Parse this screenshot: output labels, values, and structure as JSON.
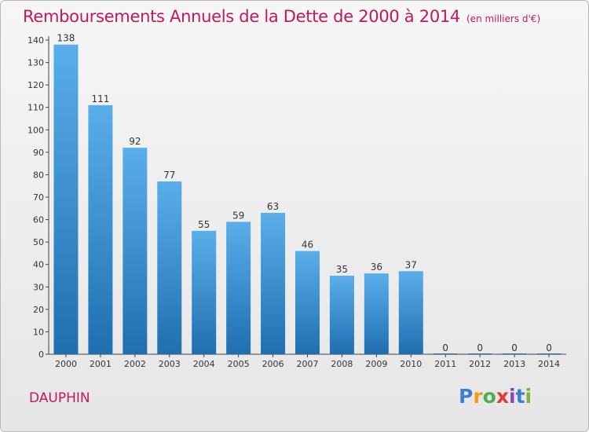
{
  "header": {
    "title": "Remboursements Annuels de la Dette de 2000 à 2014",
    "unit": "(en milliers d'€)"
  },
  "commune": "DAUPHIN",
  "logo": {
    "text": "Proxiti",
    "letter_colors": [
      "#3d7fc9",
      "#f39c12",
      "#4caf50",
      "#e53935",
      "#8e44ad",
      "#3d7fc9",
      "#7cb342"
    ]
  },
  "chart_data": {
    "type": "bar",
    "title": "Remboursements Annuels de la Dette de 2000 à 2014",
    "categories": [
      "2000",
      "2001",
      "2002",
      "2003",
      "2004",
      "2005",
      "2006",
      "2007",
      "2008",
      "2009",
      "2010",
      "2011",
      "2012",
      "2013",
      "2014"
    ],
    "values": [
      138,
      111,
      92,
      77,
      55,
      59,
      63,
      46,
      35,
      36,
      37,
      0,
      0,
      0,
      0
    ],
    "ylim": [
      0,
      140
    ],
    "yticks": [
      0,
      10,
      20,
      30,
      40,
      50,
      60,
      70,
      80,
      90,
      100,
      110,
      120,
      130,
      140
    ],
    "grid": false,
    "colors": {
      "bar_light": "#5aaeea",
      "bar_dark": "#1f6fb0",
      "axis": "#444444"
    }
  }
}
